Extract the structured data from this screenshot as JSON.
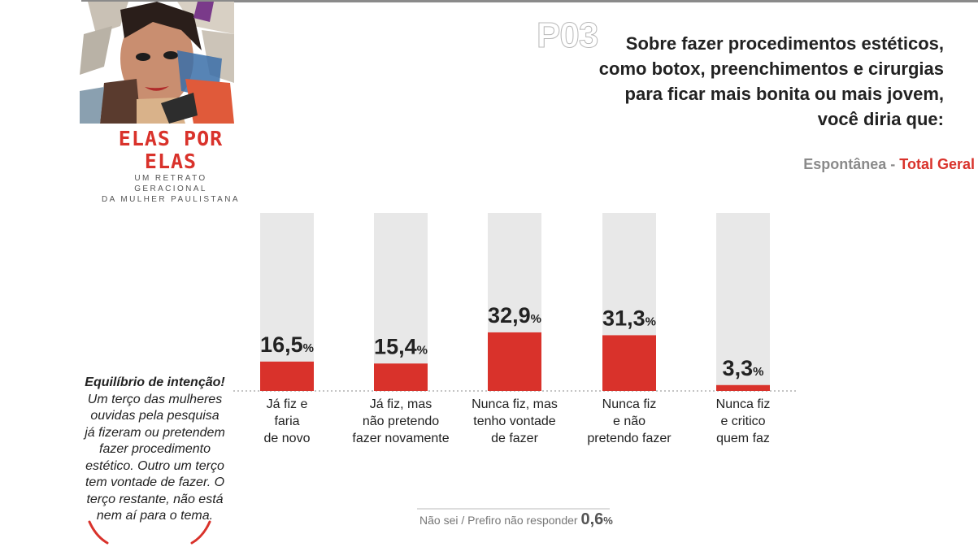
{
  "header": {
    "code": "P03",
    "question": "Sobre fazer procedimentos estéticos, como botox, preenchimentos e cirurgias para ficar mais bonita ou mais jovem, você diria que:",
    "subtitle_prefix": "Espontânea - ",
    "subtitle_accent": "Total Geral"
  },
  "brand": {
    "title": "ELAS POR ELAS",
    "sub1": "UM RETRATO GERACIONAL",
    "sub2": "DA MULHER PAULISTANA"
  },
  "note": {
    "title": "Equilíbrio de intenção!",
    "body": "Um terço das mulheres ouvidas pela pesquisa já fizeram ou pretendem fazer procedimento estético. Outro um terço tem vontade de fazer. O terço restante, não está nem aí para o tema."
  },
  "other_response": {
    "label": "Não sei / Prefiro não responder",
    "value": "0,6",
    "unit": "%"
  },
  "colors": {
    "accent": "#d9322b",
    "track": "#e8e8e8"
  },
  "chart_data": {
    "type": "bar",
    "categories": [
      [
        "Já fiz e",
        "faria",
        "de novo"
      ],
      [
        "Já fiz, mas",
        "não pretendo",
        "fazer novamente"
      ],
      [
        "Nunca fiz, mas",
        "tenho vontade",
        "de fazer"
      ],
      [
        "Nunca fiz",
        "e não",
        "pretendo fazer"
      ],
      [
        "Nunca fiz",
        "e critico",
        "quem faz"
      ]
    ],
    "values": [
      16.5,
      15.4,
      32.9,
      31.3,
      3.3
    ],
    "labels": [
      "16,5",
      "15,4",
      "32,9",
      "31,3",
      "3,3"
    ],
    "unit": "%",
    "ylim": [
      0,
      100
    ],
    "grid": false
  }
}
